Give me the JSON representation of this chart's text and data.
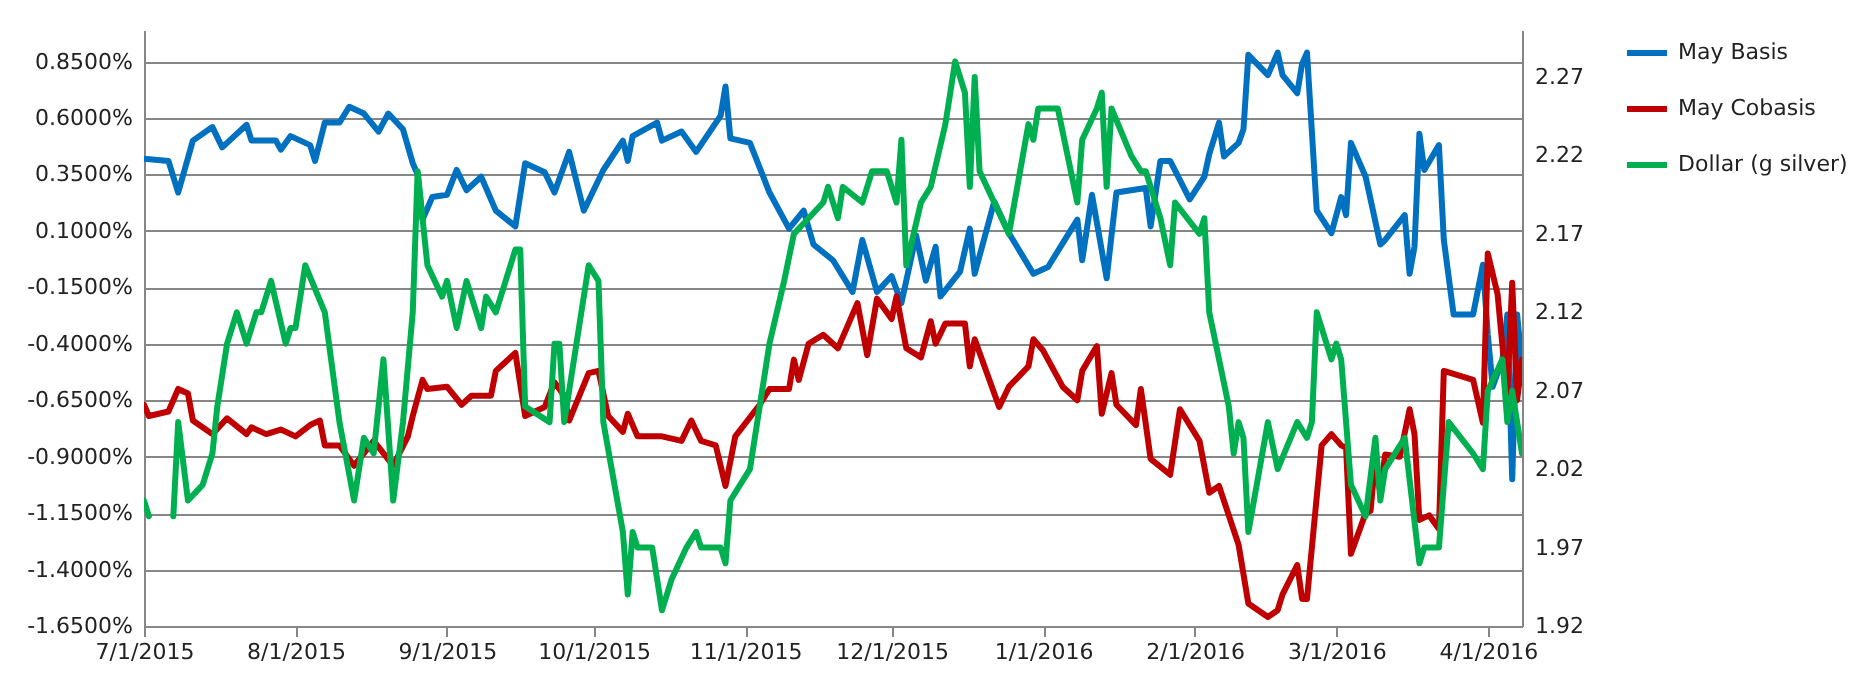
{
  "chart_data": {
    "type": "line",
    "xlim": [
      "2015-07-01",
      "2016-04-08"
    ],
    "xticks": [
      {
        "value": "2015-07-01",
        "label": "7/1/2015"
      },
      {
        "value": "2015-08-01",
        "label": "8/1/2015"
      },
      {
        "value": "2015-09-01",
        "label": "9/1/2015"
      },
      {
        "value": "2015-10-01",
        "label": "10/1/2015"
      },
      {
        "value": "2015-11-01",
        "label": "11/1/2015"
      },
      {
        "value": "2015-12-01",
        "label": "12/1/2015"
      },
      {
        "value": "2016-01-01",
        "label": "1/1/2016"
      },
      {
        "value": "2016-02-01",
        "label": "2/1/2016"
      },
      {
        "value": "2016-03-01",
        "label": "3/1/2016"
      },
      {
        "value": "2016-04-01",
        "label": "4/1/2016"
      }
    ],
    "ylim": [
      -1.65,
      0.99
    ],
    "yticks": [
      {
        "value": -1.65,
        "label": "-1.6500%"
      },
      {
        "value": -1.4,
        "label": "-1.4000%"
      },
      {
        "value": -1.15,
        "label": "-1.1500%"
      },
      {
        "value": -0.9,
        "label": "-0.9000%"
      },
      {
        "value": -0.65,
        "label": "-0.6500%"
      },
      {
        "value": -0.4,
        "label": "-0.4000%"
      },
      {
        "value": -0.15,
        "label": "-0.1500%"
      },
      {
        "value": 0.1,
        "label": "0.1000%"
      },
      {
        "value": 0.35,
        "label": "0.3500%"
      },
      {
        "value": 0.6,
        "label": "0.6000%"
      },
      {
        "value": 0.85,
        "label": "0.8500%"
      }
    ],
    "y2lim": [
      1.92,
      2.3
    ],
    "y2ticks": [
      1.92,
      1.97,
      2.02,
      2.07,
      2.12,
      2.17,
      2.22,
      2.27
    ],
    "grid": "y",
    "legend": "right",
    "series": [
      {
        "name": "May Basis",
        "color": "#0070c0",
        "x": [
          "2015-07-01",
          "2015-07-06",
          "2015-07-08",
          "2015-07-11",
          "2015-07-15",
          "2015-07-17",
          "2015-07-22",
          "2015-07-23",
          "2015-07-28",
          "2015-07-29",
          "2015-07-31",
          "2015-08-04",
          "2015-08-05",
          "2015-08-07",
          "2015-08-10",
          "2015-08-12",
          "2015-08-15",
          "2015-08-18",
          "2015-08-20",
          "2015-08-23",
          "2015-08-25",
          "2015-08-26",
          "2015-08-27",
          "2015-08-29",
          "2015-09-01",
          "2015-09-03",
          "2015-09-05",
          "2015-09-08",
          "2015-09-11",
          "2015-09-15",
          "2015-09-17",
          "2015-09-21",
          "2015-09-23",
          "2015-09-26",
          "2015-09-29",
          "2015-10-03",
          "2015-10-07",
          "2015-10-08",
          "2015-10-09",
          "2015-10-14",
          "2015-10-15",
          "2015-10-19",
          "2015-10-22",
          "2015-10-27",
          "2015-10-28",
          "2015-10-29",
          "2015-11-02",
          "2015-11-06",
          "2015-11-10",
          "2015-11-13",
          "2015-11-15",
          "2015-11-19",
          "2015-11-23",
          "2015-11-25",
          "2015-11-28",
          "2015-12-01",
          "2015-12-03",
          "2015-12-06",
          "2015-12-08",
          "2015-12-10",
          "2015-12-11",
          "2015-12-15",
          "2015-12-17",
          "2015-12-18",
          "2015-12-22",
          "2015-12-25",
          "2015-12-30",
          "2016-01-02",
          "2016-01-06",
          "2016-01-08",
          "2016-01-09",
          "2016-01-11",
          "2016-01-14",
          "2016-01-16",
          "2016-01-22",
          "2016-01-23",
          "2016-01-25",
          "2016-01-27",
          "2016-01-31",
          "2016-02-03",
          "2016-02-04",
          "2016-02-06",
          "2016-02-07",
          "2016-02-10",
          "2016-02-11",
          "2016-02-12",
          "2016-02-16",
          "2016-02-18",
          "2016-02-19",
          "2016-02-22",
          "2016-02-23",
          "2016-02-24",
          "2016-02-26",
          "2016-02-29",
          "2016-03-02",
          "2016-03-03",
          "2016-03-04",
          "2016-03-07",
          "2016-03-10",
          "2016-03-11",
          "2016-03-15",
          "2016-03-16",
          "2016-03-17",
          "2016-03-18",
          "2016-03-19",
          "2016-03-22",
          "2016-03-23",
          "2016-03-25",
          "2016-03-29",
          "2016-03-31",
          "2016-04-01",
          "2016-04-02",
          "2016-04-04",
          "2016-04-05",
          "2016-04-06",
          "2016-04-07",
          "2016-04-08"
        ],
        "values": [
          0.42,
          0.41,
          0.27,
          0.5,
          0.56,
          0.47,
          0.57,
          0.5,
          0.5,
          0.46,
          0.52,
          0.48,
          0.41,
          0.58,
          0.58,
          0.65,
          0.62,
          0.54,
          0.62,
          0.55,
          0.4,
          0.35,
          0.15,
          0.25,
          0.26,
          0.37,
          0.28,
          0.34,
          0.19,
          0.12,
          0.4,
          0.36,
          0.27,
          0.45,
          0.19,
          0.37,
          0.5,
          0.41,
          0.52,
          0.58,
          0.5,
          0.54,
          0.45,
          0.61,
          0.74,
          0.51,
          0.49,
          0.27,
          0.11,
          0.19,
          0.04,
          -0.03,
          -0.17,
          0.06,
          -0.17,
          -0.1,
          -0.22,
          0.08,
          -0.12,
          0.03,
          -0.19,
          -0.08,
          0.11,
          -0.09,
          0.23,
          0.09,
          -0.09,
          -0.06,
          0.08,
          0.15,
          -0.03,
          0.26,
          -0.11,
          0.27,
          0.29,
          0.12,
          0.41,
          0.41,
          0.24,
          0.34,
          0.44,
          0.58,
          0.43,
          0.49,
          0.55,
          0.88,
          0.79,
          0.89,
          0.79,
          0.71,
          0.84,
          0.89,
          0.19,
          0.09,
          0.25,
          0.17,
          0.49,
          0.34,
          0.04,
          0.06,
          0.17,
          -0.09,
          0.03,
          0.53,
          0.37,
          0.48,
          0.06,
          -0.27,
          -0.27,
          -0.05,
          -0.36,
          -0.59,
          -0.47,
          -0.27,
          -1.0,
          -0.27,
          -0.5
        ]
      },
      {
        "name": "May Cobasis",
        "color": "#c00000",
        "x": [
          "2015-07-01",
          "2015-07-02",
          "2015-07-06",
          "2015-07-08",
          "2015-07-10",
          "2015-07-11",
          "2015-07-15",
          "2015-07-18",
          "2015-07-22",
          "2015-07-23",
          "2015-07-26",
          "2015-07-29",
          "2015-08-01",
          "2015-08-04",
          "2015-08-06",
          "2015-08-07",
          "2015-08-10",
          "2015-08-13",
          "2015-08-17",
          "2015-08-21",
          "2015-08-24",
          "2015-08-25",
          "2015-08-27",
          "2015-08-28",
          "2015-09-01",
          "2015-09-04",
          "2015-09-06",
          "2015-09-10",
          "2015-09-11",
          "2015-09-15",
          "2015-09-17",
          "2015-09-21",
          "2015-09-23",
          "2015-09-25",
          "2015-09-26",
          "2015-09-30",
          "2015-10-02",
          "2015-10-04",
          "2015-10-07",
          "2015-10-08",
          "2015-10-10",
          "2015-10-15",
          "2015-10-19",
          "2015-10-21",
          "2015-10-23",
          "2015-10-26",
          "2015-10-28",
          "2015-10-30",
          "2015-11-04",
          "2015-11-06",
          "2015-11-10",
          "2015-11-11",
          "2015-11-12",
          "2015-11-14",
          "2015-11-17",
          "2015-11-20",
          "2015-11-24",
          "2015-11-26",
          "2015-11-28",
          "2015-12-01",
          "2015-12-02",
          "2015-12-04",
          "2015-12-07",
          "2015-12-09",
          "2015-12-10",
          "2015-12-12",
          "2015-12-16",
          "2015-12-17",
          "2015-12-18",
          "2015-12-23",
          "2015-12-25",
          "2015-12-29",
          "2015-12-30",
          "2016-01-01",
          "2016-01-05",
          "2016-01-08",
          "2016-01-09",
          "2016-01-12",
          "2016-01-13",
          "2016-01-15",
          "2016-01-16",
          "2016-01-20",
          "2016-01-21",
          "2016-01-23",
          "2016-01-27",
          "2016-01-29",
          "2016-02-02",
          "2016-02-04",
          "2016-02-06",
          "2016-02-10",
          "2016-02-12",
          "2016-02-16",
          "2016-02-18",
          "2016-02-19",
          "2016-02-22",
          "2016-02-23",
          "2016-02-24",
          "2016-02-27",
          "2016-02-29",
          "2016-03-02",
          "2016-03-03",
          "2016-03-04",
          "2016-03-07",
          "2016-03-08",
          "2016-03-09",
          "2016-03-10",
          "2016-03-11",
          "2016-03-14",
          "2016-03-16",
          "2016-03-17",
          "2016-03-18",
          "2016-03-20",
          "2016-03-22",
          "2016-03-23",
          "2016-03-29",
          "2016-03-31",
          "2016-04-01",
          "2016-04-03",
          "2016-04-04",
          "2016-04-05",
          "2016-04-06",
          "2016-04-07",
          "2016-04-08"
        ],
        "values": [
          -0.67,
          -0.72,
          -0.7,
          -0.6,
          -0.62,
          -0.74,
          -0.8,
          -0.73,
          -0.8,
          -0.77,
          -0.8,
          -0.78,
          -0.81,
          -0.76,
          -0.74,
          -0.85,
          -0.85,
          -0.94,
          -0.83,
          -0.94,
          -0.81,
          -0.72,
          -0.56,
          -0.6,
          -0.59,
          -0.67,
          -0.63,
          -0.63,
          -0.52,
          -0.44,
          -0.72,
          -0.68,
          -0.57,
          -0.63,
          -0.74,
          -0.53,
          -0.52,
          -0.72,
          -0.79,
          -0.71,
          -0.81,
          -0.81,
          -0.83,
          -0.74,
          -0.83,
          -0.85,
          -1.03,
          -0.81,
          -0.67,
          -0.6,
          -0.6,
          -0.47,
          -0.56,
          -0.4,
          -0.36,
          -0.42,
          -0.22,
          -0.45,
          -0.2,
          -0.29,
          -0.19,
          -0.42,
          -0.46,
          -0.3,
          -0.4,
          -0.31,
          -0.31,
          -0.5,
          -0.38,
          -0.68,
          -0.59,
          -0.5,
          -0.38,
          -0.43,
          -0.59,
          -0.65,
          -0.52,
          -0.41,
          -0.71,
          -0.53,
          -0.67,
          -0.76,
          -0.6,
          -0.91,
          -0.98,
          -0.69,
          -0.83,
          -1.06,
          -1.03,
          -1.29,
          -1.55,
          -1.61,
          -1.58,
          -1.51,
          -1.38,
          -1.53,
          -1.53,
          -0.85,
          -0.8,
          -0.85,
          -0.86,
          -1.33,
          -1.15,
          -1.14,
          -0.91,
          -1.06,
          -0.89,
          -0.9,
          -0.69,
          -0.8,
          -1.18,
          -1.16,
          -1.22,
          -0.52,
          -0.56,
          -0.75,
          0.0,
          -0.18,
          -0.41,
          -0.62,
          -0.13,
          -0.65,
          -0.47
        ]
      },
      {
        "name": "Dollar (g silver)",
        "color": "#00b050",
        "axis": "y2",
        "x": [
          "2015-07-01",
          "2015-07-02",
          "2015-07-04",
          "2015-07-07",
          "2015-07-08",
          "2015-07-10",
          "2015-07-13",
          "2015-07-15",
          "2015-07-16",
          "2015-07-18",
          "2015-07-20",
          "2015-07-22",
          "2015-07-24",
          "2015-07-25",
          "2015-07-27",
          "2015-07-30",
          "2015-07-31",
          "2015-08-01",
          "2015-08-03",
          "2015-08-07",
          "2015-08-10",
          "2015-08-13",
          "2015-08-15",
          "2015-08-17",
          "2015-08-19",
          "2015-08-21",
          "2015-08-23",
          "2015-08-25",
          "2015-08-26",
          "2015-08-28",
          "2015-08-31",
          "2015-09-01",
          "2015-09-03",
          "2015-09-05",
          "2015-09-08",
          "2015-09-09",
          "2015-09-11",
          "2015-09-15",
          "2015-09-16",
          "2015-09-17",
          "2015-09-22",
          "2015-09-23",
          "2015-09-24",
          "2015-09-25",
          "2015-09-29",
          "2015-09-30",
          "2015-10-02",
          "2015-10-03",
          "2015-10-07",
          "2015-10-08",
          "2015-10-09",
          "2015-10-10",
          "2015-10-13",
          "2015-10-15",
          "2015-10-17",
          "2015-10-20",
          "2015-10-22",
          "2015-10-23",
          "2015-10-27",
          "2015-10-28",
          "2015-10-29",
          "2015-11-02",
          "2015-11-06",
          "2015-11-09",
          "2015-11-11",
          "2015-11-14",
          "2015-11-17",
          "2015-11-18",
          "2015-11-20",
          "2015-11-21",
          "2015-11-25",
          "2015-11-27",
          "2015-11-30",
          "2015-12-02",
          "2015-12-03",
          "2015-12-04",
          "2015-12-07",
          "2015-12-09",
          "2015-12-12",
          "2015-12-14",
          "2015-12-16",
          "2015-12-17",
          "2015-12-18",
          "2015-12-19",
          "2015-12-25",
          "2015-12-29",
          "2015-12-30",
          "2015-12-31",
          "2016-01-04",
          "2016-01-06",
          "2016-01-08",
          "2016-01-09",
          "2016-01-12",
          "2016-01-13",
          "2016-01-14",
          "2016-01-15",
          "2016-01-19",
          "2016-01-21",
          "2016-01-22",
          "2016-01-25",
          "2016-01-27",
          "2016-01-28",
          "2016-02-02",
          "2016-02-03",
          "2016-02-04",
          "2016-02-08",
          "2016-02-09",
          "2016-02-10",
          "2016-02-11",
          "2016-02-12",
          "2016-02-16",
          "2016-02-18",
          "2016-02-22",
          "2016-02-24",
          "2016-02-25",
          "2016-02-26",
          "2016-02-29",
          "2016-03-01",
          "2016-03-02",
          "2016-03-04",
          "2016-03-07",
          "2016-03-09",
          "2016-03-10",
          "2016-03-11",
          "2016-03-15",
          "2016-03-18",
          "2016-03-19",
          "2016-03-22",
          "2016-03-24",
          "2016-03-29",
          "2016-03-31",
          "2016-04-01",
          "2016-04-04",
          "2016-04-05",
          "2016-04-06",
          "2016-04-08"
        ],
        "values": [
          2.0,
          1.99,
          null,
          1.99,
          2.05,
          2.0,
          2.01,
          2.03,
          2.06,
          2.1,
          2.12,
          2.1,
          2.12,
          2.12,
          2.14,
          2.1,
          2.11,
          2.11,
          2.15,
          2.12,
          2.05,
          2.0,
          2.04,
          2.03,
          2.09,
          2.0,
          2.05,
          2.12,
          2.21,
          2.15,
          2.13,
          2.14,
          2.11,
          2.14,
          2.11,
          2.13,
          2.12,
          2.16,
          2.16,
          2.06,
          2.05,
          2.1,
          2.1,
          2.05,
          2.13,
          2.15,
          2.14,
          2.05,
          1.98,
          1.94,
          1.98,
          1.97,
          1.97,
          1.93,
          1.95,
          1.97,
          1.98,
          1.97,
          1.97,
          1.96,
          2.0,
          2.02,
          2.1,
          2.14,
          2.17,
          2.18,
          2.19,
          2.2,
          2.18,
          2.2,
          2.19,
          2.21,
          2.21,
          2.19,
          2.23,
          2.15,
          2.19,
          2.2,
          2.24,
          2.28,
          2.26,
          2.2,
          2.27,
          2.21,
          2.17,
          2.24,
          2.23,
          2.25,
          2.25,
          2.22,
          2.19,
          2.23,
          2.25,
          2.26,
          2.2,
          2.25,
          2.22,
          2.21,
          2.21,
          2.18,
          2.15,
          2.19,
          2.17,
          2.18,
          2.12,
          2.06,
          2.03,
          2.05,
          2.04,
          1.98,
          2.05,
          2.02,
          2.05,
          2.04,
          2.05,
          2.12,
          2.09,
          2.1,
          2.09,
          2.01,
          1.99,
          2.04,
          2.0,
          2.02,
          2.04,
          1.96,
          1.97,
          1.97,
          2.05,
          2.03,
          2.02,
          2.07,
          2.09,
          2.05,
          2.07,
          2.03
        ]
      }
    ]
  }
}
